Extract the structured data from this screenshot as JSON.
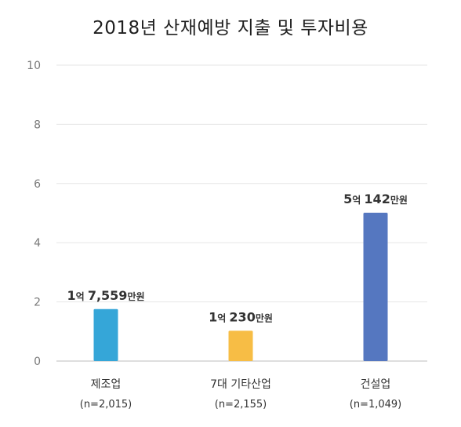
{
  "chart_data": {
    "type": "bar",
    "title": "2018년 산재예방 지출 및 투자비용",
    "xlabel": "",
    "ylabel": "",
    "ylim": [
      0,
      10
    ],
    "yticks": [
      0,
      2,
      4,
      6,
      8,
      10
    ],
    "grid": true,
    "categories": [
      "제조업",
      "7대 기타산업",
      "건설업"
    ],
    "category_n": [
      "(n=2,015)",
      "(n=2,155)",
      "(n=1,049)"
    ],
    "values": [
      1.7559,
      1.023,
      5.0142
    ],
    "colors": [
      "#35a6d8",
      "#f7bd45",
      "#5577c0"
    ],
    "data_labels": [
      {
        "big1": "1",
        "small1": "억 ",
        "big2": "7,559",
        "small2": "만원"
      },
      {
        "big1": "1",
        "small1": "억 ",
        "big2": "230",
        "small2": "만원"
      },
      {
        "big1": "5",
        "small1": "억 ",
        "big2": "142",
        "small2": "만원"
      }
    ]
  }
}
